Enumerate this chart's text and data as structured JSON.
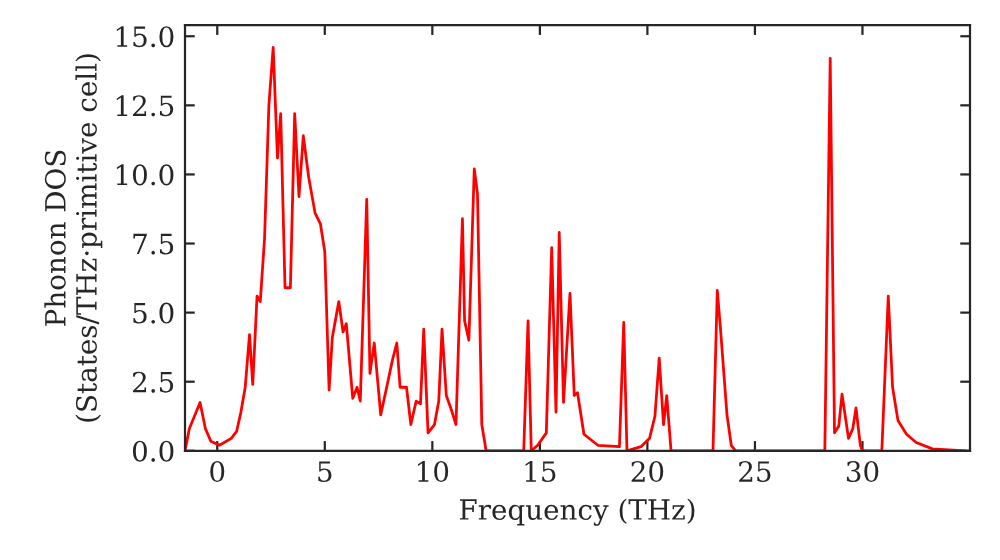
{
  "chart_data": {
    "type": "line",
    "xlabel": "Frequency (THz)",
    "ylabel": "Phonon DOS\n(States/THz·primitive cell)",
    "xlim": [
      -1.5,
      35
    ],
    "ylim": [
      0,
      15.4
    ],
    "xticks": [
      0,
      5,
      10,
      15,
      20,
      25,
      30
    ],
    "yticks": [
      {
        "value": 0,
        "label": "0.0"
      },
      {
        "value": 2.5,
        "label": "2.5"
      },
      {
        "value": 5,
        "label": "5.0"
      },
      {
        "value": 7.5,
        "label": "7.5"
      },
      {
        "value": 10,
        "label": "10.0"
      },
      {
        "value": 12.5,
        "label": "12.5"
      },
      {
        "value": 15,
        "label": "15.0"
      }
    ],
    "grid": false,
    "marker": "none",
    "line_style": "solid",
    "series": [
      {
        "color": "#ff0000",
        "x": [
          -1.5,
          -1.3,
          -0.8,
          -0.55,
          -0.3,
          0.1,
          0.65,
          0.9,
          1.1,
          1.3,
          1.5,
          1.65,
          1.85,
          2.0,
          2.2,
          2.4,
          2.6,
          2.8,
          2.95,
          3.15,
          3.4,
          3.6,
          3.8,
          4.0,
          4.25,
          4.55,
          4.8,
          5.0,
          5.2,
          5.35,
          5.65,
          5.85,
          6.0,
          6.3,
          6.5,
          6.65,
          6.95,
          7.1,
          7.3,
          7.6,
          7.85,
          8.15,
          8.35,
          8.5,
          8.8,
          9.0,
          9.25,
          9.45,
          9.6,
          9.8,
          10.1,
          10.3,
          10.45,
          10.65,
          10.9,
          11.1,
          11.4,
          11.5,
          11.7,
          11.95,
          12.1,
          12.3,
          12.5,
          14.25,
          14.45,
          14.6,
          14.9,
          15.3,
          15.55,
          15.75,
          15.9,
          16.1,
          16.4,
          16.6,
          16.75,
          17.05,
          17.7,
          18.7,
          18.9,
          19.05,
          19.7,
          20.1,
          20.35,
          20.55,
          20.75,
          20.9,
          21.1,
          23.05,
          23.25,
          23.4,
          23.7,
          23.9,
          24.1,
          28.25,
          28.5,
          28.7,
          28.9,
          29.05,
          29.35,
          29.55,
          29.7,
          29.9,
          30.0,
          30.9,
          31.2,
          31.4,
          31.65,
          32.05,
          32.5,
          33.25,
          34.8
        ],
        "values": [
          0,
          0.8,
          1.75,
          0.8,
          0.35,
          0.2,
          0.45,
          0.7,
          1.4,
          2.3,
          4.2,
          2.4,
          5.6,
          5.4,
          7.7,
          12.5,
          14.6,
          10.6,
          12.2,
          5.9,
          5.9,
          12.2,
          9.2,
          11.4,
          9.9,
          8.6,
          8.2,
          7.2,
          2.2,
          4.1,
          5.4,
          4.3,
          4.6,
          1.9,
          2.3,
          1.8,
          9.1,
          2.8,
          3.9,
          1.3,
          2.2,
          3.3,
          3.9,
          2.3,
          2.3,
          0.95,
          1.8,
          1.7,
          4.4,
          0.65,
          0.95,
          1.8,
          4.4,
          2.0,
          1.45,
          0.95,
          8.4,
          4.7,
          4.0,
          10.2,
          9.3,
          0.95,
          0,
          0,
          4.7,
          0,
          0.2,
          0.65,
          7.35,
          1.4,
          7.9,
          1.75,
          5.7,
          2.0,
          2.1,
          0.6,
          0.2,
          0.15,
          4.65,
          0,
          0.15,
          0.45,
          1.25,
          3.35,
          0.95,
          2.0,
          0,
          0,
          5.8,
          4.4,
          1.3,
          0.2,
          0,
          0,
          14.2,
          0.65,
          0.9,
          2.05,
          0.45,
          0.8,
          1.55,
          0.2,
          0,
          0,
          5.6,
          2.3,
          1.1,
          0.6,
          0.3,
          0.07,
          0
        ]
      }
    ]
  }
}
